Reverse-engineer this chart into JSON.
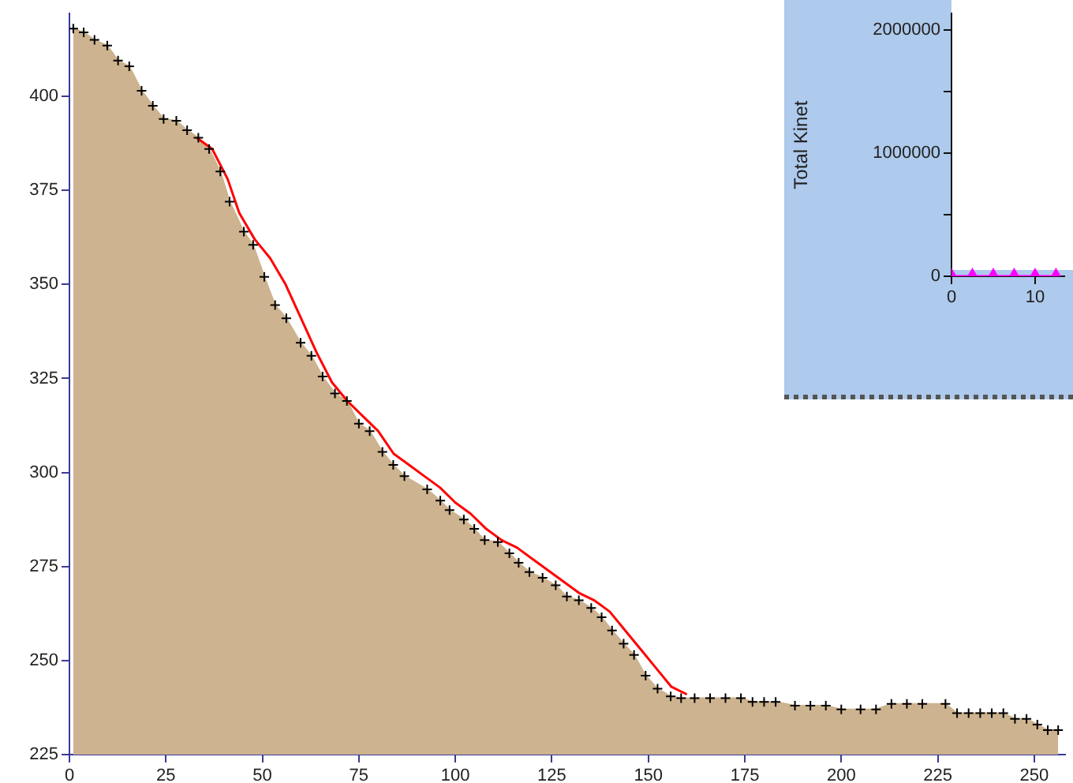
{
  "chart_data": [
    {
      "type": "area",
      "xlim": [
        0,
        258
      ],
      "xticks": [
        0,
        25,
        50,
        75,
        100,
        125,
        150,
        175,
        200,
        225,
        250
      ],
      "ylim": [
        225,
        422
      ],
      "yticks": [
        225,
        250,
        275,
        300,
        325,
        350,
        375,
        400
      ],
      "grid": false,
      "legend": false,
      "series": [
        {
          "color": "#cdb38f",
          "x": [
            1,
            3.7,
            6.5,
            9.8,
            12.6,
            15.5,
            18.7,
            21.6,
            24.4,
            27.7,
            30.5,
            33.4,
            36.2,
            39.1,
            41.5,
            45.2,
            47.6,
            50.5,
            53.3,
            56.2,
            59.9,
            62.7,
            65.6,
            68.8,
            71.9,
            75,
            77.8,
            81.1,
            83.9,
            86.8,
            92.7,
            96.1,
            98.5,
            102.2,
            104.9,
            107.6,
            111,
            114,
            116.4,
            119.2,
            122.6,
            126,
            128.9,
            132,
            135.2,
            137.9,
            140.6,
            143.6,
            146.3,
            149.3,
            152.4,
            155.8,
            158.5,
            162,
            166,
            170,
            174,
            177,
            180,
            183,
            188,
            192,
            196,
            200,
            205,
            209,
            213,
            217,
            221,
            227,
            230,
            233,
            236,
            239,
            242,
            245,
            248,
            250.8,
            253.5,
            256.2
          ],
          "values": [
            418,
            417,
            415,
            413.5,
            409.5,
            408,
            401.5,
            397.5,
            394,
            393.5,
            391,
            389,
            386,
            380,
            372,
            364,
            360.5,
            352,
            344.5,
            341,
            334.5,
            331,
            325.5,
            321,
            319,
            313,
            311,
            305.5,
            302,
            299,
            295.5,
            292.5,
            290,
            287.5,
            285,
            282,
            281.5,
            278.5,
            276,
            273.5,
            272,
            270,
            267,
            266,
            264,
            261.5,
            258,
            254.5,
            251.5,
            246,
            242.5,
            240.5,
            240,
            240,
            240,
            240,
            240,
            239,
            239,
            239,
            238,
            238,
            238,
            237,
            237,
            237,
            238.5,
            238.5,
            238.5,
            238.5,
            236,
            236,
            236,
            236,
            236,
            234.5,
            234.5,
            233,
            231.5,
            231.5
          ]
        },
        {
          "type": "scatter",
          "marker": "cross",
          "color": "#000000",
          "x": [
            1,
            3.7,
            6.5,
            9.8,
            12.6,
            15.5,
            18.7,
            21.6,
            24.4,
            27.7,
            30.5,
            33.4,
            36.2,
            39.1,
            41.5,
            45.2,
            47.6,
            50.5,
            53.3,
            56.2,
            59.9,
            62.7,
            65.6,
            68.8,
            71.9,
            75,
            77.8,
            81.1,
            83.9,
            86.8,
            92.7,
            96.1,
            98.5,
            102.2,
            104.9,
            107.6,
            111,
            114,
            116.4,
            119.2,
            122.6,
            126,
            128.9,
            132,
            135.2,
            137.9,
            140.6,
            143.6,
            146.3,
            149.3,
            152.4,
            155.8,
            158.5,
            162,
            166,
            170,
            174,
            177,
            180,
            183,
            188,
            192,
            196,
            200,
            205,
            209,
            213,
            217,
            221,
            227,
            230,
            233,
            236,
            239,
            242,
            245,
            248,
            250.8,
            253.5,
            256.2
          ],
          "values": [
            418,
            417,
            415,
            413.5,
            409.5,
            408,
            401.5,
            397.5,
            394,
            393.5,
            391,
            389,
            386,
            380,
            372,
            364,
            360.5,
            352,
            344.5,
            341,
            334.5,
            331,
            325.5,
            321,
            319,
            313,
            311,
            305.5,
            302,
            299,
            295.5,
            292.5,
            290,
            287.5,
            285,
            282,
            281.5,
            278.5,
            276,
            273.5,
            272,
            270,
            267,
            266,
            264,
            261.5,
            258,
            254.5,
            251.5,
            246,
            242.5,
            240.5,
            240,
            240,
            240,
            240,
            240,
            239,
            239,
            239,
            238,
            238,
            238,
            237,
            237,
            237,
            238.5,
            238.5,
            238.5,
            238.5,
            236,
            236,
            236,
            236,
            236,
            234.5,
            234.5,
            233,
            231.5,
            231.5
          ]
        },
        {
          "type": "line",
          "color": "#ff0000",
          "x": [
            33,
            37,
            41,
            44,
            48,
            52,
            56,
            60,
            64,
            68,
            72,
            76,
            80,
            84,
            88,
            92,
            96,
            100,
            104,
            108,
            112,
            116,
            120,
            124,
            128,
            132,
            136,
            140,
            144,
            148,
            152,
            156,
            160
          ],
          "values": [
            389,
            386,
            378,
            369,
            362,
            357,
            350,
            341,
            332,
            324,
            319,
            315,
            311,
            305,
            302,
            299,
            296,
            292,
            289,
            285,
            282,
            280,
            277,
            274,
            271,
            268,
            266,
            263,
            258,
            253,
            248,
            243,
            241
          ]
        }
      ]
    },
    {
      "type": "line",
      "ylabel": "Total Kinet",
      "xlim": [
        0,
        13.5
      ],
      "xticks": [
        0,
        10
      ],
      "ylim": [
        0,
        2130000
      ],
      "yticks": [
        0,
        {
          "value": 500000,
          "label": null
        },
        1000000,
        {
          "value": 1500000,
          "label": null
        },
        2000000
      ],
      "grid": false,
      "legend": false,
      "series": [
        {
          "marker": "triangle",
          "color": "#ff00ff",
          "x": [
            0,
            2.5,
            5,
            7.5,
            10,
            12.5
          ],
          "values": [
            0,
            0,
            0,
            0,
            0,
            0
          ]
        }
      ]
    }
  ]
}
